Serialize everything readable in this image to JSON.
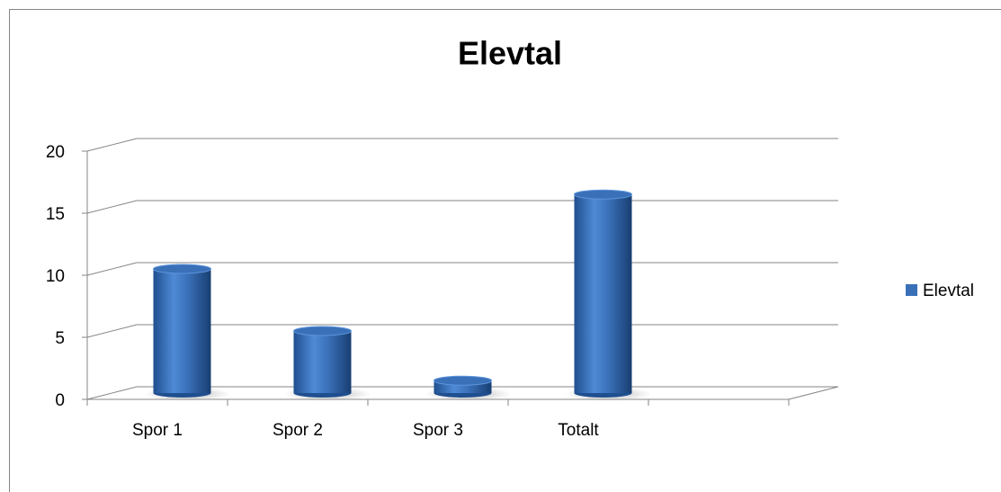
{
  "chart_data": {
    "type": "bar",
    "title": "Elevtal",
    "categories": [
      "Spor 1",
      "Spor 2",
      "Spor 3",
      "Totalt",
      null
    ],
    "series": [
      {
        "name": "Elevtal",
        "color": "#3a70b8",
        "values": [
          10,
          5,
          1,
          16,
          null
        ]
      }
    ],
    "ylim": [
      0,
      20
    ],
    "yticks": [
      0,
      5,
      10,
      15,
      20
    ],
    "grid": true,
    "legend": "right"
  }
}
